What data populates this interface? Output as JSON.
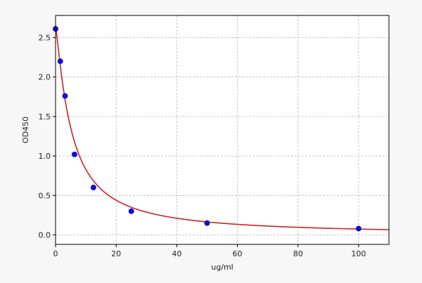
{
  "chart_data": {
    "type": "scatter",
    "title": "",
    "xlabel": "ug/ml",
    "ylabel": "OD450",
    "xlim": [
      0,
      110
    ],
    "ylim": [
      -0.12,
      2.78
    ],
    "xticks": [
      0,
      20,
      40,
      60,
      80,
      100
    ],
    "yticks": [
      0.0,
      0.5,
      1.0,
      1.5,
      2.0,
      2.5
    ],
    "xtick_labels": [
      "0",
      "20",
      "40",
      "60",
      "80",
      "100"
    ],
    "ytick_labels": [
      "0.0",
      "0.5",
      "1.0",
      "1.5",
      "2.0",
      "2.5"
    ],
    "grid": true,
    "legend": "none",
    "series": [
      {
        "type": "scatter",
        "color": "#1010d0",
        "points": [
          {
            "x": 0,
            "y": 2.61
          },
          {
            "x": 1.56,
            "y": 2.2
          },
          {
            "x": 3.13,
            "y": 1.76
          },
          {
            "x": 6.25,
            "y": 1.02
          },
          {
            "x": 12.5,
            "y": 0.6
          },
          {
            "x": 25,
            "y": 0.3
          },
          {
            "x": 50,
            "y": 0.15
          },
          {
            "x": 100,
            "y": 0.08
          }
        ]
      },
      {
        "type": "line",
        "color": "#cc2222",
        "fit": "four-parameter logistic",
        "params": {
          "A": 2.65,
          "B": 1.2,
          "C": 5.2,
          "D": 0
        }
      }
    ]
  }
}
